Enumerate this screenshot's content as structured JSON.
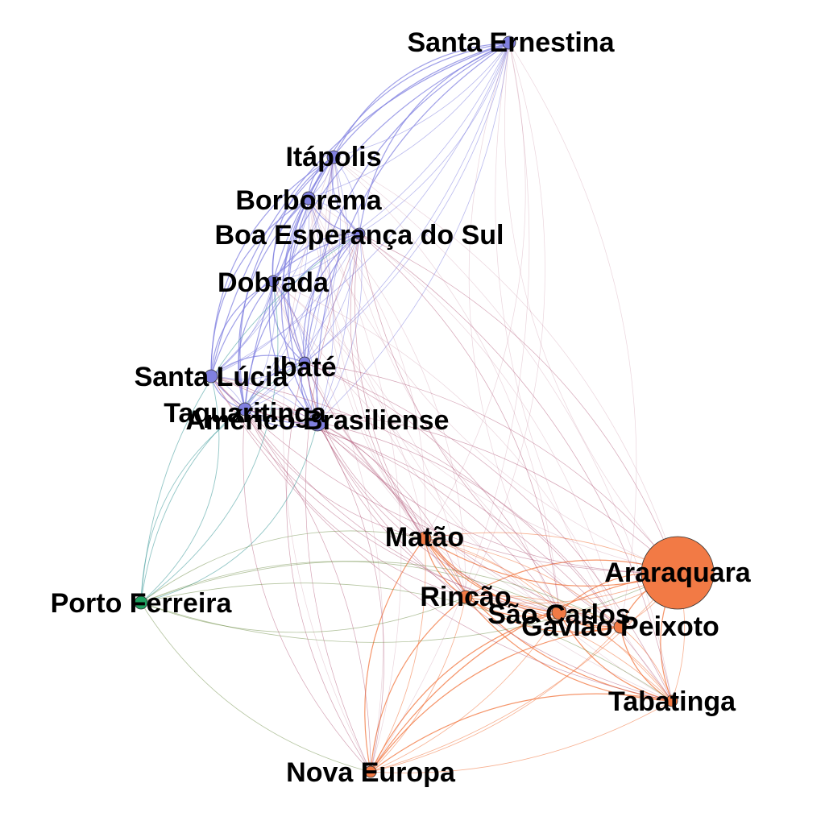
{
  "colors": {
    "purple": "#8080e0",
    "orange": "#f27a45",
    "green": "#1fa060",
    "mauve": "#b05878",
    "teal": "#4aa0a0",
    "olive": "#6a8a40"
  },
  "nodes": [
    {
      "id": "santa_ernestina",
      "label": "Santa Ernestina",
      "group": "purple"
    },
    {
      "id": "itapolis",
      "label": "Itápolis",
      "group": "purple"
    },
    {
      "id": "borborema",
      "label": "Borborema",
      "group": "purple"
    },
    {
      "id": "boa_esperanca",
      "label": "Boa Esperança do Sul",
      "group": "purple"
    },
    {
      "id": "dobrada",
      "label": "Dobrada",
      "group": "purple"
    },
    {
      "id": "ibate",
      "label": "Ibaté",
      "group": "purple"
    },
    {
      "id": "santa_lucia",
      "label": "Santa Lúcia",
      "group": "purple"
    },
    {
      "id": "taquaritinga",
      "label": "Taquaritinga",
      "group": "purple"
    },
    {
      "id": "americo",
      "label": "Américo Brasiliense",
      "group": "purple"
    },
    {
      "id": "matao",
      "label": "Matão",
      "group": "orange"
    },
    {
      "id": "porto_ferreira",
      "label": "Porto Ferreira",
      "group": "green"
    },
    {
      "id": "araraquara",
      "label": "Araraquara",
      "group": "orange"
    },
    {
      "id": "rincao",
      "label": "Rincão",
      "group": "orange"
    },
    {
      "id": "sao_carlos",
      "label": "São Carlos",
      "group": "orange"
    },
    {
      "id": "gaviao",
      "label": "Gavião Peixoto",
      "group": "orange"
    },
    {
      "id": "tabatinga",
      "label": "Tabatinga",
      "group": "orange"
    },
    {
      "id": "nova_europa",
      "label": "Nova Europa",
      "group": "orange"
    }
  ]
}
